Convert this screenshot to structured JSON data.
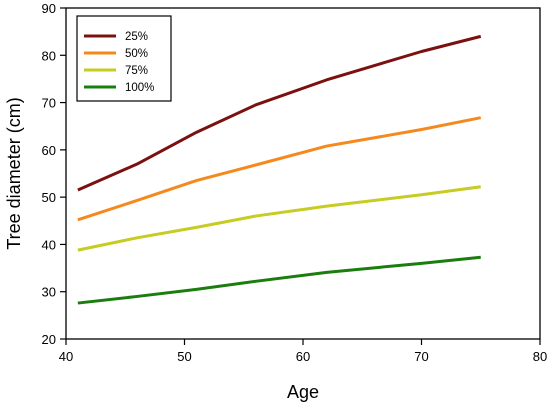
{
  "chart_data": {
    "type": "line",
    "title": "",
    "xlabel": "Age",
    "ylabel": "Tree diameter (cm)",
    "xlim": [
      40,
      80
    ],
    "ylim": [
      20,
      90
    ],
    "xticks": [
      40,
      50,
      60,
      70,
      80
    ],
    "yticks": [
      20,
      30,
      40,
      50,
      60,
      70,
      80,
      90
    ],
    "grid": false,
    "legend_position": "top-left",
    "series": [
      {
        "name": "25%",
        "color": "#7b1010",
        "points": [
          [
            41,
            51.5
          ],
          [
            46,
            57
          ],
          [
            51,
            63.7
          ],
          [
            56,
            69.5
          ],
          [
            62,
            74.8
          ],
          [
            70,
            80.8
          ],
          [
            75,
            84
          ]
        ]
      },
      {
        "name": "50%",
        "color": "#f5891e",
        "points": [
          [
            41,
            45.2
          ],
          [
            46,
            49.3
          ],
          [
            51,
            53.5
          ],
          [
            56,
            56.8
          ],
          [
            62,
            60.8
          ],
          [
            70,
            64.3
          ],
          [
            75,
            66.8
          ]
        ]
      },
      {
        "name": "75%",
        "color": "#c6cc22",
        "points": [
          [
            41,
            38.8
          ],
          [
            46,
            41.4
          ],
          [
            51,
            43.6
          ],
          [
            56,
            46
          ],
          [
            62,
            48.1
          ],
          [
            70,
            50.5
          ],
          [
            75,
            52.2
          ]
        ]
      },
      {
        "name": "100%",
        "color": "#1a7d0e",
        "points": [
          [
            41,
            27.6
          ],
          [
            46,
            29
          ],
          [
            51,
            30.5
          ],
          [
            56,
            32.2
          ],
          [
            62,
            34.1
          ],
          [
            70,
            36
          ],
          [
            75,
            37.3
          ]
        ]
      }
    ]
  }
}
